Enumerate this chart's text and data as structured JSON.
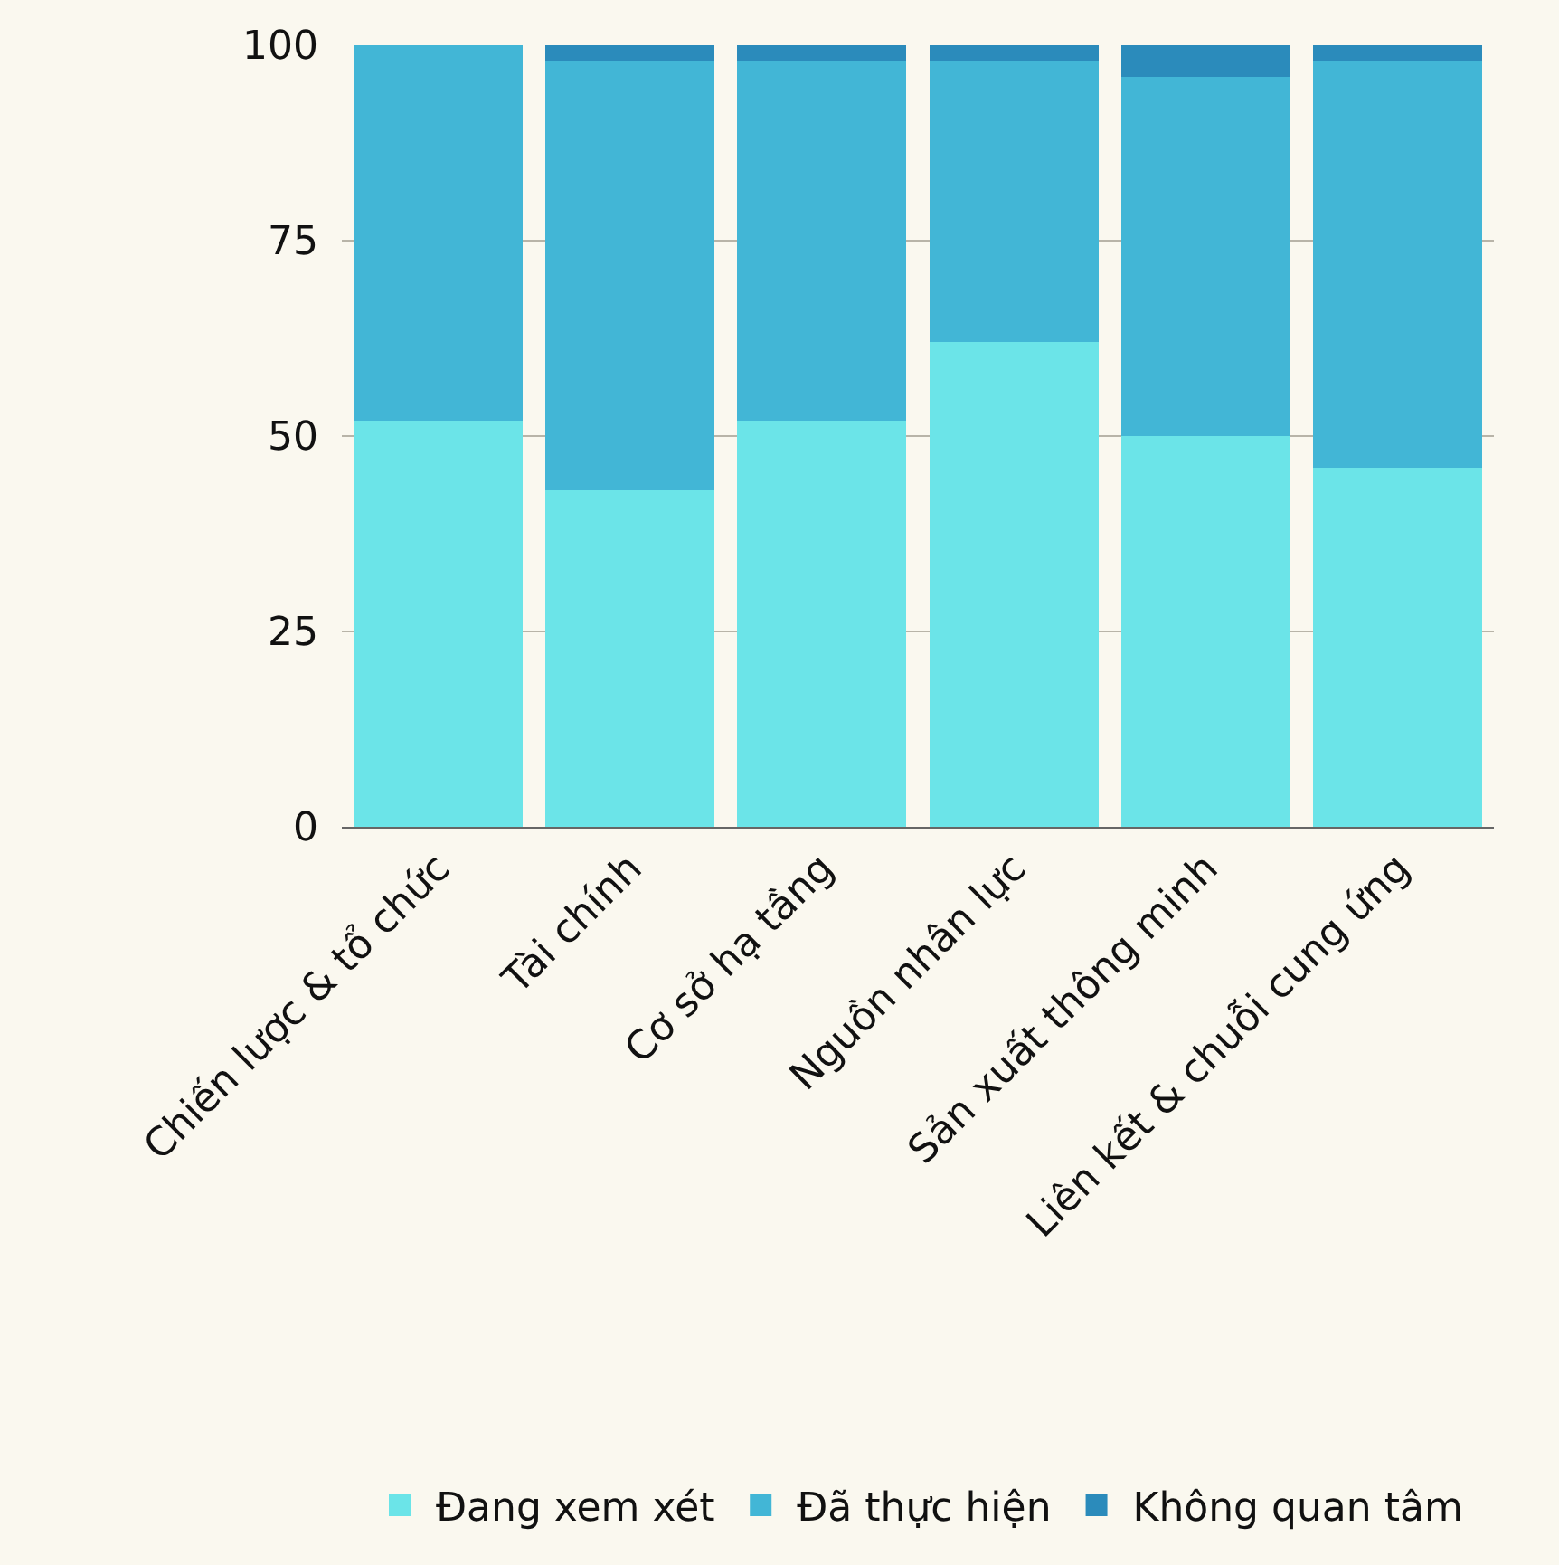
{
  "chart_data": {
    "type": "bar",
    "stacked": true,
    "categories": [
      "Chiến lược & tổ chức",
      "Tài chính",
      "Cơ sở hạ tầng",
      "Nguồn nhân lực",
      "Sản xuất thông minh",
      "Liên kết & chuỗi cung ứng"
    ],
    "series": [
      {
        "name": "Đang xem xét",
        "color": "#6be4e8",
        "values": [
          52,
          43,
          52,
          62,
          50,
          46
        ]
      },
      {
        "name": "Đã thực hiện",
        "color": "#42b6d6",
        "values": [
          48,
          55,
          46,
          36,
          46,
          52
        ]
      },
      {
        "name": "Không quan tâm",
        "color": "#2b8bbb",
        "values": [
          0,
          2,
          2,
          2,
          4,
          2
        ]
      }
    ],
    "ylim": [
      0,
      100
    ],
    "yticks": [
      0,
      25,
      50,
      75,
      100
    ],
    "grid": "y",
    "legend": "bottom"
  }
}
